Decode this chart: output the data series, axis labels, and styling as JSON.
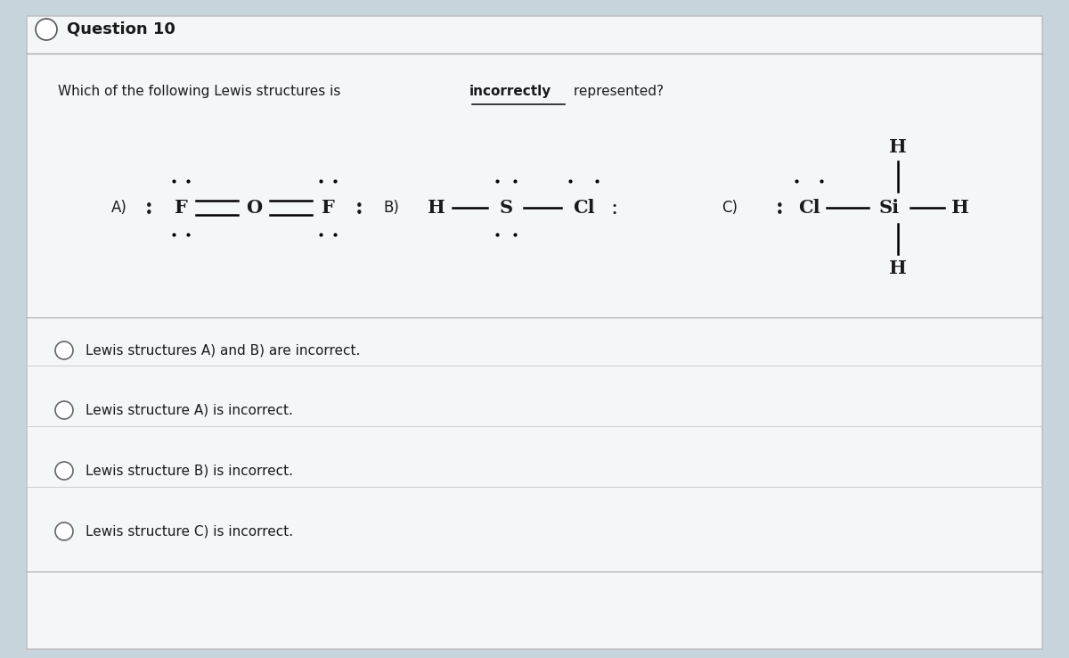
{
  "title": "Question 10",
  "bg_color": "#c8d4dc",
  "card_facecolor": "white",
  "border_color": "#bbbbbb",
  "answer_options": [
    "Lewis structures A) and B) are incorrect.",
    "Lewis structure A) is incorrect.",
    "Lewis structure B) is incorrect.",
    "Lewis structure C) is incorrect."
  ],
  "font_color": "#1a1a1a",
  "font_size_title": 13,
  "font_size_question": 11,
  "font_size_structure": 15,
  "font_size_answer": 11
}
